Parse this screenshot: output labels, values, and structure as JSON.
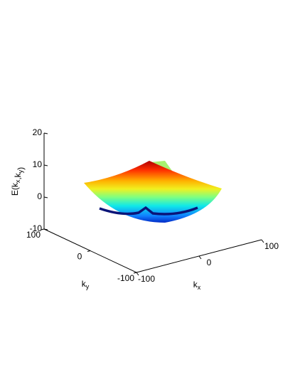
{
  "chart_data": {
    "type": "surface3d",
    "xlabel": "kx",
    "ylabel": "ky",
    "zlabel": "E(kx,ky)",
    "xlim": [
      -100,
      100
    ],
    "xticks": [
      -100,
      0,
      100
    ],
    "ylim": [
      -100,
      100
    ],
    "yticks": [
      -100,
      0,
      100
    ],
    "zlim": [
      -10,
      20
    ],
    "zticks": [
      -10,
      0,
      10,
      20
    ]
  }
}
